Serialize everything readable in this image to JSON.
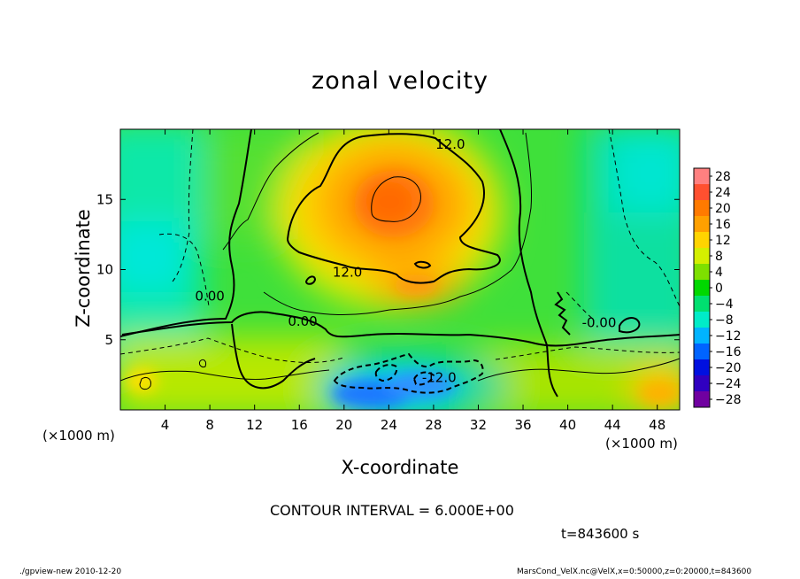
{
  "chart_data": {
    "type": "heatmap",
    "title": "zonal velocity",
    "xlabel": "X-coordinate",
    "ylabel": "Z-coordinate",
    "x_unit_label": "(×1000 m)",
    "xlim": [
      0,
      50
    ],
    "ylim": [
      0,
      20
    ],
    "x_ticks": [
      4,
      8,
      12,
      16,
      20,
      24,
      28,
      32,
      36,
      40,
      44,
      48
    ],
    "y_ticks": [
      5,
      10,
      15
    ],
    "colorbar_levels": [
      28,
      24,
      20,
      16,
      12,
      8,
      4,
      0,
      -4,
      -8,
      -12,
      -16,
      -20,
      -24,
      -28
    ],
    "contour_interval": "CONTOUR INTERVAL = 6.000E+00",
    "contour_labels": [
      {
        "text": "12.0",
        "x": 29.5,
        "z": 18.6
      },
      {
        "text": "12.0",
        "x": 20.3,
        "z": 9.5
      },
      {
        "text": "0.00",
        "x": 16.3,
        "z": 6.0
      },
      {
        "text": "0.00",
        "x": 8.0,
        "z": 7.8
      },
      {
        "text": "-0.00",
        "x": 42.8,
        "z": 5.9
      },
      {
        "text": "-12.0",
        "x": 28.5,
        "z": 2.0
      }
    ],
    "field_features": [
      {
        "name": "jet maximum",
        "x": 24,
        "z": 14,
        "value": 20
      },
      {
        "name": "negative minimum",
        "x": 24,
        "z": 1.5,
        "value": -16
      }
    ],
    "time_label": "t=843600 s"
  },
  "footer": {
    "left": "./gpview-new   2010-12-20",
    "right": "MarsCond_VelX.nc@VelX,x=0:50000,z=0:20000,t=843600"
  },
  "colors": {
    "colorbar": [
      "#ff8080",
      "#ff5030",
      "#ff7a00",
      "#ffa000",
      "#ffd400",
      "#d4ef00",
      "#7ee000",
      "#00d800",
      "#00e070",
      "#00ecc8",
      "#00b4ff",
      "#0064ff",
      "#0010e0",
      "#3000c0",
      "#7000a0"
    ]
  }
}
